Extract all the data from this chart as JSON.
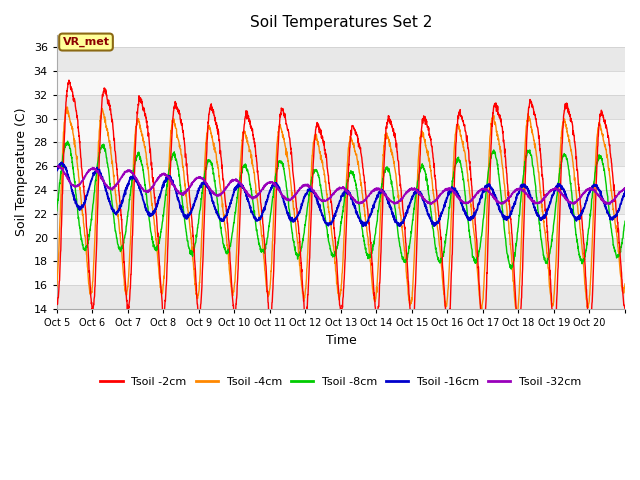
{
  "title": "Soil Temperatures Set 2",
  "xlabel": "Time",
  "ylabel": "Soil Temperature (C)",
  "ylim": [
    14,
    37
  ],
  "yticks": [
    14,
    16,
    18,
    20,
    22,
    24,
    26,
    28,
    30,
    32,
    34,
    36
  ],
  "x_labels": [
    "Oct 5",
    "Oct 6",
    "Oct 7",
    "Oct 8",
    "Oct 9",
    "Oct 10",
    "Oct 11",
    "Oct 12",
    "Oct 13",
    "Oct 14",
    "Oct 15",
    "Oct 16",
    "Oct 17",
    "Oct 18",
    "Oct 19",
    "Oct 20"
  ],
  "annotation_text": "VR_met",
  "series_colors": [
    "#ff0000",
    "#ff8800",
    "#00cc00",
    "#0000cc",
    "#9900bb"
  ],
  "series_labels": [
    "Tsoil -2cm",
    "Tsoil -4cm",
    "Tsoil -8cm",
    "Tsoil -16cm",
    "Tsoil -32cm"
  ],
  "band_colors": [
    "#e8e8e8",
    "#f8f8f8"
  ],
  "n_days": 16,
  "samples_per_day": 144
}
